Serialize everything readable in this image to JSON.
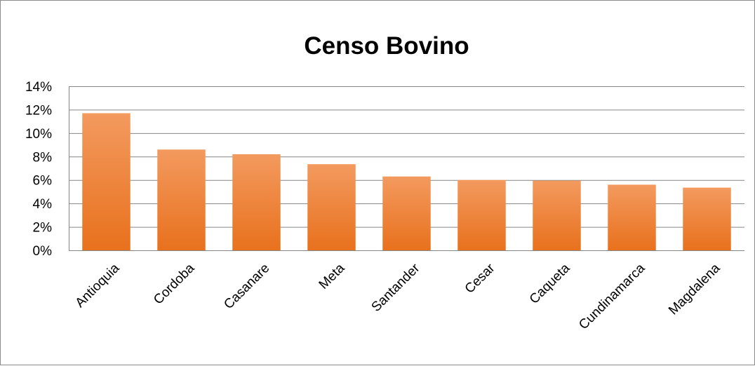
{
  "chart_data": {
    "type": "bar",
    "title": "Censo Bovino",
    "xlabel": "",
    "ylabel": "",
    "categories": [
      "Antioquia",
      "Cordoba",
      "Casanare",
      "Meta",
      "Santander",
      "Cesar",
      "Caqueta",
      "Cundinamarca",
      "Magdalena"
    ],
    "values": [
      11.7,
      8.6,
      8.2,
      7.35,
      6.3,
      6.0,
      5.95,
      5.6,
      5.35
    ],
    "value_format": "percent",
    "ylim": [
      0,
      14
    ],
    "yticks": [
      0,
      2,
      4,
      6,
      8,
      10,
      12,
      14
    ],
    "ytick_labels": [
      "0%",
      "2%",
      "4%",
      "6%",
      "8%",
      "10%",
      "12%",
      "14%"
    ],
    "grid": true,
    "legend": "none",
    "colors": {
      "bar_top": "#f39a5f",
      "bar_bottom": "#e8711d",
      "grid": "#868686",
      "border": "#8c8c8c"
    }
  }
}
